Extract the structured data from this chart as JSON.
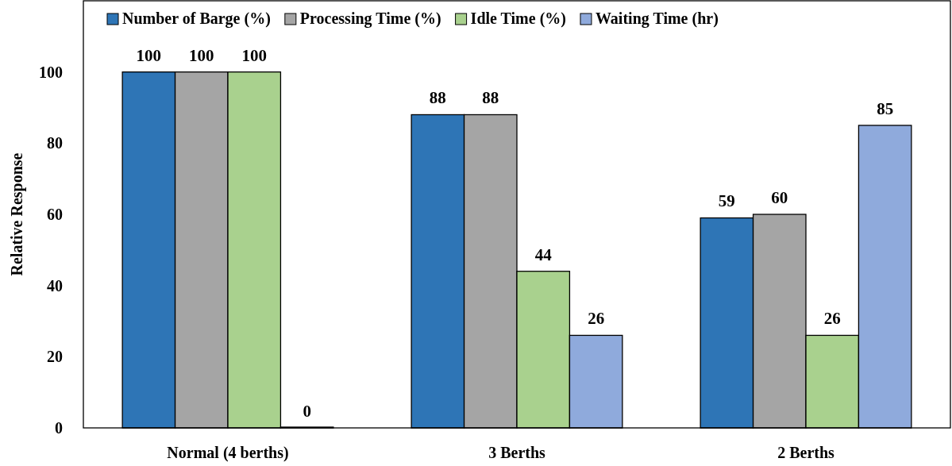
{
  "chart_data": {
    "type": "bar",
    "ylabel": "Relative  Response",
    "categories": [
      "Normal (4 berths)",
      "3 Berths",
      "2 Berths"
    ],
    "series": [
      {
        "name": "Number of Barge (%)",
        "color": "#2e75b6",
        "values": [
          100,
          88,
          59
        ]
      },
      {
        "name": "Processing Time (%)",
        "color": "#a5a5a5",
        "values": [
          100,
          88,
          60
        ]
      },
      {
        "name": "Idle Time (%)",
        "color": "#a9d18e",
        "values": [
          100,
          44,
          26
        ]
      },
      {
        "name": "Waiting Time (hr)",
        "color": "#8faadc",
        "values": [
          0,
          26,
          85
        ]
      }
    ],
    "ylim": [
      0,
      120
    ],
    "yticks": [
      0,
      20,
      40,
      60,
      80,
      100
    ],
    "grid": false,
    "legend": "top",
    "data_labels": true
  }
}
